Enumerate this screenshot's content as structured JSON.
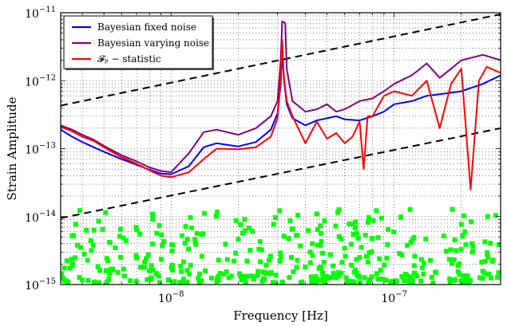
{
  "chart_data": {
    "type": "line",
    "title": "",
    "xlabel": "Frequency [Hz]",
    "ylabel": "Strain Amplitude",
    "x_scale": "log",
    "y_scale": "log",
    "xlim": [
      3.2e-09,
      3e-07
    ],
    "ylim": [
      1e-15,
      1e-11
    ],
    "grid": true,
    "legend_position": "top-left",
    "x_ticks": [
      {
        "value": 1e-08,
        "mantissa": "10",
        "exponent": "−8"
      },
      {
        "value": 1e-07,
        "mantissa": "10",
        "exponent": "−7"
      }
    ],
    "y_ticks": [
      {
        "value": 1e-15,
        "mantissa": "10",
        "exponent": "−15"
      },
      {
        "value": 1e-14,
        "mantissa": "10",
        "exponent": "−14"
      },
      {
        "value": 1e-13,
        "mantissa": "10",
        "exponent": "−13"
      },
      {
        "value": 1e-12,
        "mantissa": "10",
        "exponent": "−12"
      },
      {
        "value": 1e-11,
        "mantissa": "10",
        "exponent": "−11"
      }
    ],
    "series": [
      {
        "name": "Bayesian fixed noise",
        "color": "#0000ff",
        "style": "solid",
        "x": [
          3.2e-09,
          3.6e-09,
          4e-09,
          4.5e-09,
          5e-09,
          6e-09,
          7e-09,
          8e-09,
          9e-09,
          1e-08,
          1.2e-08,
          1.4e-08,
          1.6e-08,
          2e-08,
          2.4e-08,
          2.8e-08,
          3e-08,
          3.1e-08,
          3.15e-08,
          3.2e-08,
          3.3e-08,
          3.5e-08,
          4e-08,
          4.5e-08,
          5e-08,
          5.5e-08,
          6e-08,
          7e-08,
          8e-08,
          9e-08,
          1e-07,
          1.2e-07,
          1.4e-07,
          1.7e-07,
          2e-07,
          2.5e-07,
          3e-07
        ],
        "y": [
          1.9e-13,
          1.5e-13,
          1.25e-13,
          1.05e-13,
          9e-14,
          7e-14,
          5.8e-14,
          4.9e-14,
          4.3e-14,
          4.2e-14,
          5.5e-14,
          1.05e-13,
          1.2e-13,
          1.08e-13,
          1.25e-13,
          1.9e-13,
          3.3e-13,
          9e-13,
          2.8e-12,
          1.1e-12,
          4.5e-13,
          2.8e-13,
          2.2e-13,
          2.6e-13,
          2.8e-13,
          3e-13,
          2.7e-13,
          2.6e-13,
          3e-13,
          3.5e-13,
          4.5e-13,
          5e-13,
          6e-13,
          6.5e-13,
          7e-13,
          9e-13,
          1.2e-12
        ]
      },
      {
        "name": "Bayesian varying noise",
        "color": "#800080",
        "style": "solid",
        "x": [
          3.2e-09,
          3.6e-09,
          4e-09,
          4.5e-09,
          5e-09,
          6e-09,
          7e-09,
          8e-09,
          9e-09,
          1e-08,
          1.2e-08,
          1.4e-08,
          1.6e-08,
          2e-08,
          2.4e-08,
          2.8e-08,
          3e-08,
          3.1e-08,
          3.15e-08,
          3.25e-08,
          3.3e-08,
          3.5e-08,
          4e-08,
          4.5e-08,
          5e-08,
          5.5e-08,
          6e-08,
          7e-08,
          8e-08,
          9e-08,
          1e-07,
          1.2e-07,
          1.4e-07,
          1.6e-07,
          1.8e-07,
          2e-07,
          2.5e-07,
          3e-07
        ],
        "y": [
          2.2e-13,
          1.9e-13,
          1.6e-13,
          1.35e-13,
          1.1e-13,
          8e-14,
          6.5e-14,
          5.3e-14,
          4.7e-14,
          4.5e-14,
          8.5e-14,
          1.75e-13,
          1.9e-13,
          1.6e-13,
          2e-13,
          3e-13,
          5e-13,
          2e-12,
          7.5e-12,
          7e-12,
          1.5e-12,
          5e-13,
          3.5e-13,
          3.8e-13,
          4.5e-13,
          3.5e-13,
          3.8e-13,
          5e-13,
          5.5e-13,
          7e-13,
          9e-13,
          1.2e-12,
          1.8e-12,
          1.1e-12,
          1.5e-12,
          2e-12,
          2.4e-12,
          2e-12
        ]
      },
      {
        "name": "𝓕ₚ − statistic",
        "color": "#ff0000",
        "style": "solid",
        "x": [
          3.2e-09,
          3.6e-09,
          4e-09,
          4.5e-09,
          5e-09,
          6e-09,
          7e-09,
          8e-09,
          9e-09,
          1e-08,
          1.2e-08,
          1.4e-08,
          1.6e-08,
          2e-08,
          2.4e-08,
          2.8e-08,
          3e-08,
          3.1e-08,
          3.15e-08,
          3.2e-08,
          3.3e-08,
          3.5e-08,
          4e-08,
          4.5e-08,
          5e-08,
          5.5e-08,
          6e-08,
          6.5e-08,
          7e-08,
          7.3e-08,
          7.6e-08,
          8e-08,
          9e-08,
          1e-07,
          1.2e-07,
          1.4e-07,
          1.6e-07,
          1.8e-07,
          2e-07,
          2.2e-07,
          2.4e-07,
          2.6e-07,
          3e-07
        ],
        "y": [
          2.1e-13,
          1.8e-13,
          1.5e-13,
          1.3e-13,
          1.05e-13,
          7.5e-14,
          6e-14,
          4.8e-14,
          4e-14,
          3.8e-14,
          4.5e-14,
          7e-14,
          1e-13,
          9.8e-14,
          1.05e-13,
          1.5e-13,
          2.8e-13,
          1.1e-12,
          4e-12,
          1.2e-12,
          5e-13,
          3e-13,
          1.2e-13,
          2.5e-13,
          1.4e-13,
          1.7e-13,
          1.2e-13,
          1.5e-13,
          2.5e-13,
          5e-14,
          3e-13,
          3e-13,
          6e-13,
          7e-13,
          6e-13,
          1e-12,
          2e-13,
          9e-13,
          1.5e-12,
          2.5e-14,
          1e-12,
          1.6e-12,
          1.3e-12
        ]
      }
    ],
    "reference_lines": [
      {
        "color": "#000000",
        "style": "dashed",
        "x": [
          3.2e-09,
          3e-07
        ],
        "y": [
          4.3e-13,
          9.5e-12
        ]
      },
      {
        "color": "#000000",
        "style": "dashed",
        "x": [
          3.2e-09,
          3e-07
        ],
        "y": [
          9.5e-15,
          2e-13
        ]
      }
    ],
    "scatter_series": {
      "color": "#00ff00",
      "marker": "square",
      "note_density": "dense cloud between 1e-15 and 3e-15 with sparse points up to ~1e-14",
      "count": 520,
      "x_range": [
        3.2e-09,
        3e-07
      ],
      "y_floor": 1e-15,
      "y_mode": 1.3e-15,
      "y_max": 1.3e-14
    }
  }
}
